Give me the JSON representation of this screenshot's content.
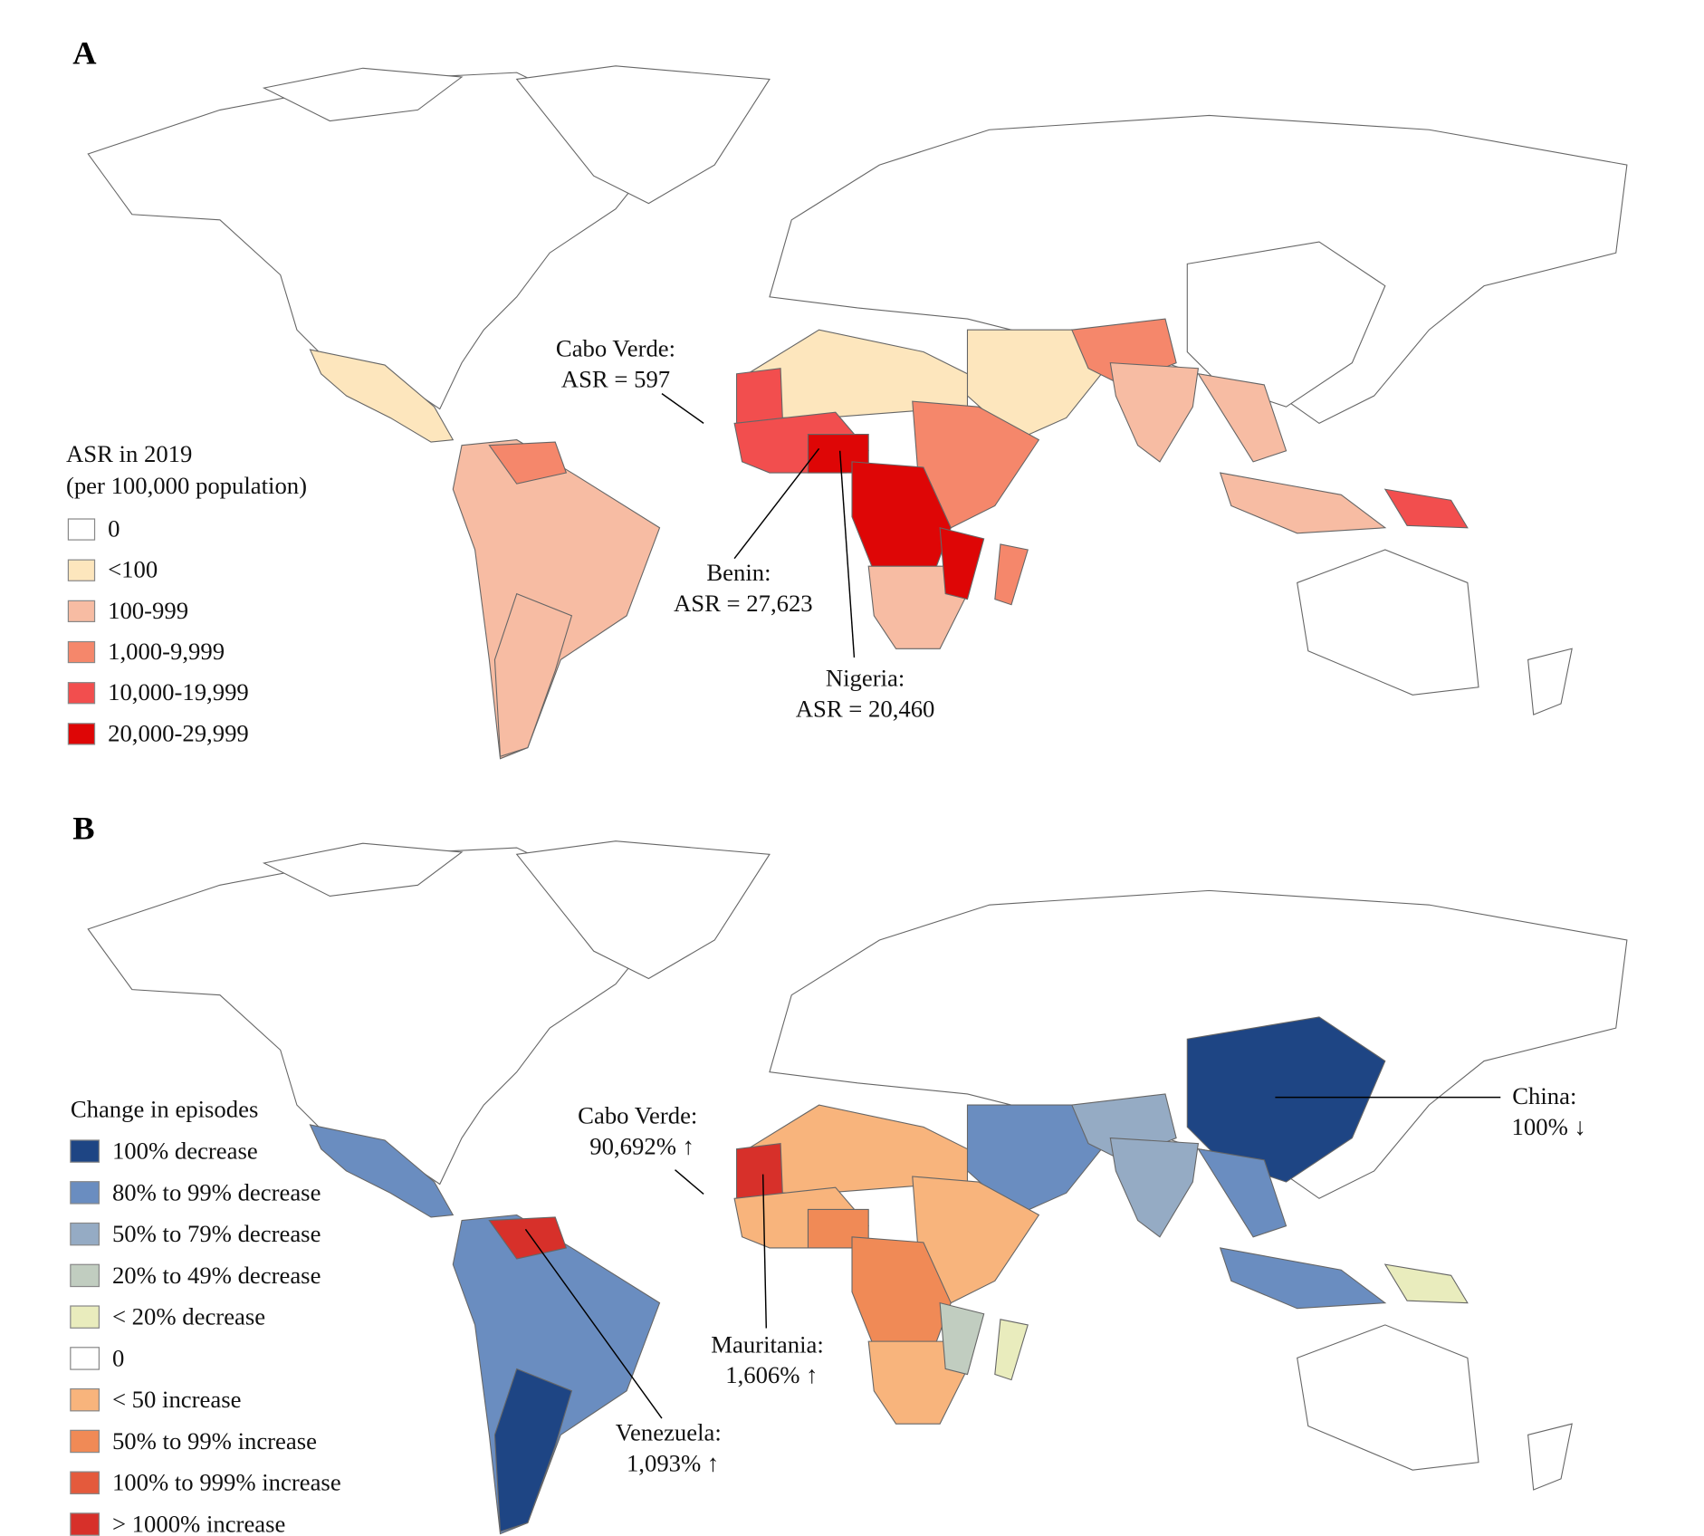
{
  "panel_a": {
    "label": "A",
    "legend_title_1": "ASR in 2019",
    "legend_title_2": "(per 100,000 population)",
    "legend": [
      {
        "label": "0",
        "color": "#ffffff"
      },
      {
        "label": "<100",
        "color": "#fde6bd"
      },
      {
        "label": "100-999",
        "color": "#f7bca3"
      },
      {
        "label": "1,000-9,999",
        "color": "#f5876b"
      },
      {
        "label": "10,000-19,999",
        "color": "#f24e4e"
      },
      {
        "label": "20,000-29,999",
        "color": "#de0606"
      }
    ],
    "annotations": [
      {
        "line1": "Cabo Verde:",
        "line2": "ASR = 597"
      },
      {
        "line1": "Benin:",
        "line2": "ASR = 27,623"
      },
      {
        "line1": "Nigeria:",
        "line2": "ASR = 20,460"
      }
    ]
  },
  "panel_b": {
    "label": "B",
    "legend_title": "Change in episodes",
    "legend": [
      {
        "label": "100% decrease",
        "color": "#1e4584"
      },
      {
        "label": "80% to 99% decrease",
        "color": "#6a8dc0"
      },
      {
        "label": "50% to 79% decrease",
        "color": "#95abc4"
      },
      {
        "label": "20% to 49% decrease",
        "color": "#c1cdc0"
      },
      {
        "label": "< 20% decrease",
        "color": "#e9ecbd"
      },
      {
        "label": "0",
        "color": "#ffffff"
      },
      {
        "label": "< 50 increase",
        "color": "#f8b47c"
      },
      {
        "label": "50% to 99% increase",
        "color": "#f08a56"
      },
      {
        "label": "100% to 999% increase",
        "color": "#e45a3c"
      },
      {
        "label": "> 1000% increase",
        "color": "#d7302a"
      }
    ],
    "annotations": [
      {
        "line1": "Cabo Verde:",
        "line2": "90,692% ↑"
      },
      {
        "line1": "Mauritania:",
        "line2": "1,606% ↑"
      },
      {
        "line1": "Venezuela:",
        "line2": "1,093% ↑"
      },
      {
        "line1": "China:",
        "line2": "100% ↓"
      }
    ]
  }
}
